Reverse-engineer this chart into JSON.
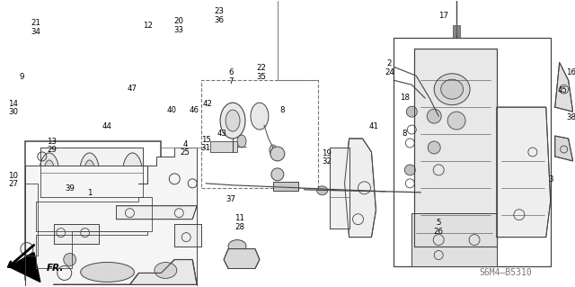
{
  "bg_color": "#ffffff",
  "diagram_code": "S6M4–B5310",
  "label_fontsize": 6.2,
  "diagram_code_fontsize": 7,
  "gray": "#444444",
  "lgray": "#777777",
  "black": "#000000"
}
